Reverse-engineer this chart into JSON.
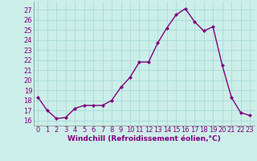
{
  "x": [
    0,
    1,
    2,
    3,
    4,
    5,
    6,
    7,
    8,
    9,
    10,
    11,
    12,
    13,
    14,
    15,
    16,
    17,
    18,
    19,
    20,
    21,
    22,
    23
  ],
  "y": [
    18.3,
    17.0,
    16.2,
    16.3,
    17.2,
    17.5,
    17.5,
    17.5,
    18.0,
    19.3,
    20.3,
    21.8,
    21.8,
    23.7,
    25.2,
    26.5,
    27.1,
    25.8,
    24.9,
    25.3,
    21.5,
    18.3,
    16.8,
    16.5
  ],
  "line_color": "#800080",
  "marker": "D",
  "marker_size": 2.0,
  "line_width": 1.0,
  "bg_color": "#cceee8",
  "grid_color": "#aadddd",
  "xlabel": "Windchill (Refroidissement éolien,°C)",
  "xlabel_color": "#800080",
  "xlabel_fontsize": 6.5,
  "tick_color": "#800080",
  "tick_fontsize": 6,
  "ylim": [
    15.5,
    27.8
  ],
  "yticks": [
    16,
    17,
    18,
    19,
    20,
    21,
    22,
    23,
    24,
    25,
    26,
    27
  ],
  "xticks": [
    0,
    1,
    2,
    3,
    4,
    5,
    6,
    7,
    8,
    9,
    10,
    11,
    12,
    13,
    14,
    15,
    16,
    17,
    18,
    19,
    20,
    21,
    22,
    23
  ]
}
